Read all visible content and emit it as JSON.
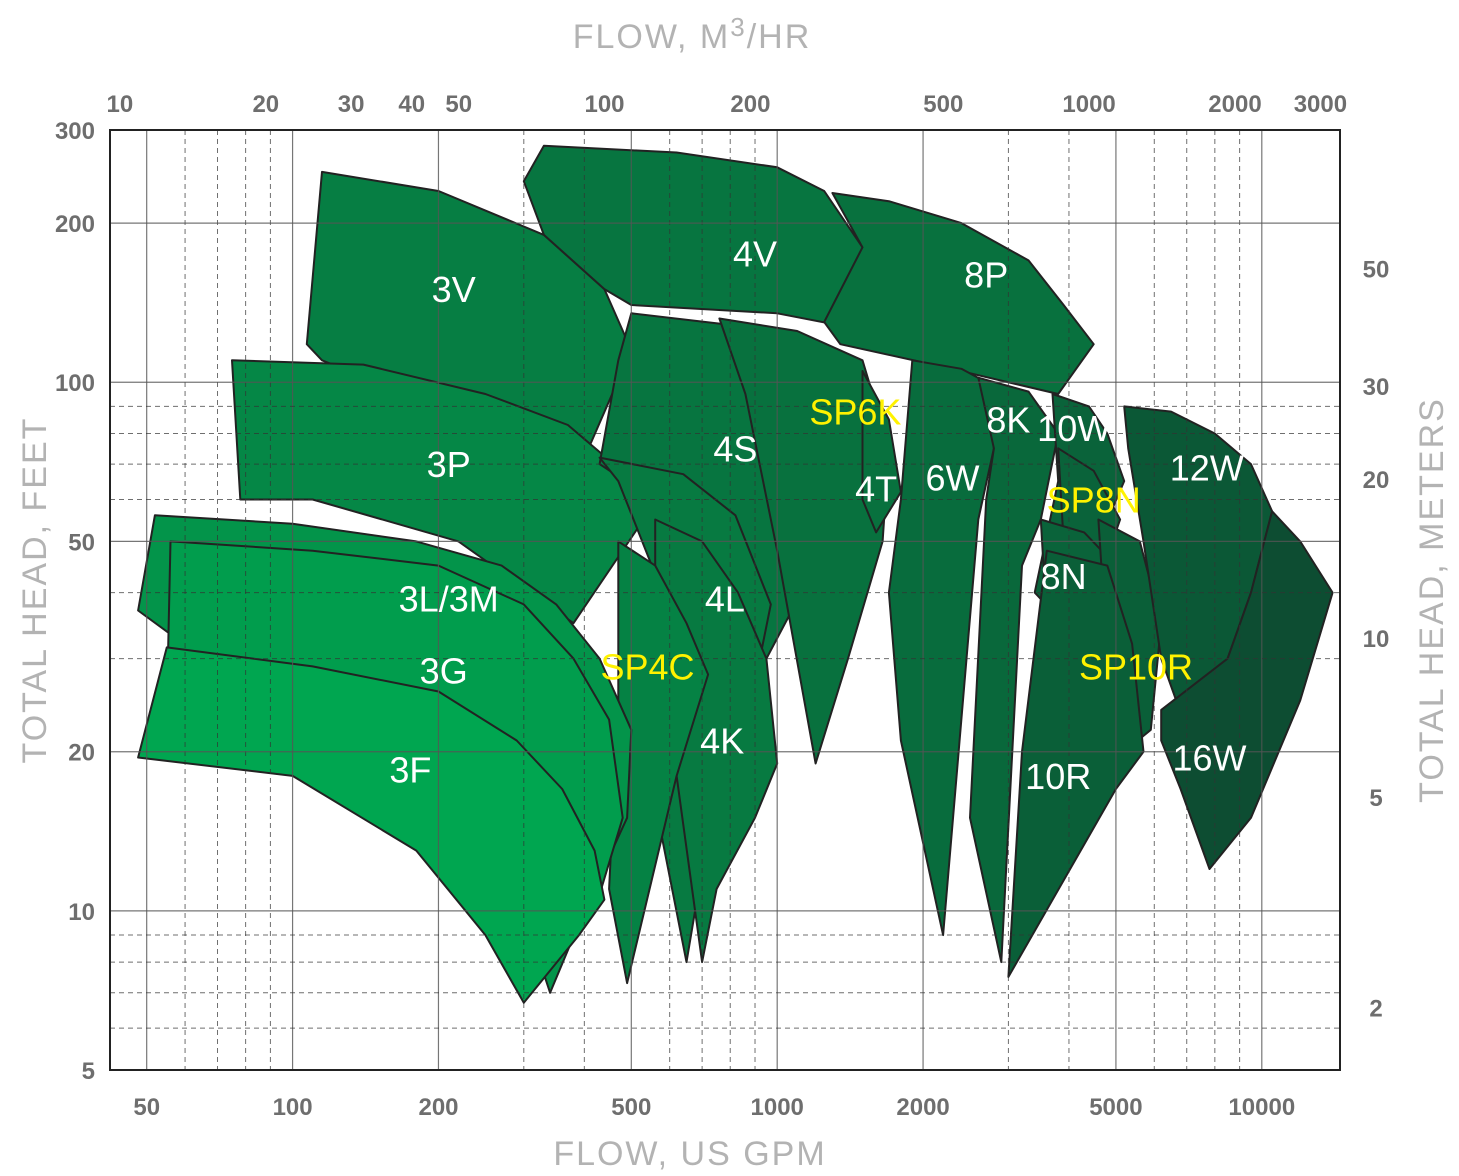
{
  "chart_data": {
    "type": "area",
    "title": "",
    "xlabel": "FLOW, US GPM",
    "x2label_prefix": "FLOW, M",
    "x2label_sup": "3",
    "x2label_suffix": "/HR",
    "ylabel": "TOTAL HEAD, FEET",
    "y2label": "TOTAL HEAD, METERS",
    "x_scale": "log",
    "y_scale": "log",
    "xlim": [
      42,
      14500
    ],
    "ylim": [
      5,
      300
    ],
    "grid": true,
    "colors": {
      "light": "#00a650",
      "dark": "#0d4d32",
      "label_white": "#ffffff",
      "label_yellow": "#fff200",
      "outline": "#222222"
    },
    "x_ticks": [
      "50",
      "100",
      "200",
      "500",
      "1000",
      "2000",
      "5000",
      "10000"
    ],
    "x_tick_values": [
      50,
      100,
      200,
      500,
      1000,
      2000,
      5000,
      10000
    ],
    "y_ticks": [
      "5",
      "10",
      "20",
      "50",
      "100",
      "200",
      "300"
    ],
    "y_tick_values": [
      5,
      10,
      20,
      50,
      100,
      200,
      300
    ],
    "x2_ticks": [
      "10",
      "20",
      "30",
      "40",
      "50",
      "100",
      "200",
      "500",
      "1000",
      "2000",
      "3000"
    ],
    "x2_tick_values": [
      10,
      20,
      30,
      40,
      50,
      100,
      200,
      500,
      1000,
      2000,
      3000
    ],
    "y2_ticks": [
      "2",
      "5",
      "10",
      "20",
      "30",
      "50"
    ],
    "y2_tick_values": [
      2,
      5,
      10,
      20,
      30,
      50
    ],
    "series": [
      {
        "name": "3V",
        "label_color": "white",
        "label_at": [
          215,
          150
        ],
        "shade": 0.45,
        "points": [
          [
            115,
            250
          ],
          [
            200,
            230
          ],
          [
            330,
            190
          ],
          [
            440,
            150
          ],
          [
            500,
            115
          ],
          [
            395,
            70
          ],
          [
            115,
            110
          ],
          [
            107,
            118
          ]
        ]
      },
      {
        "name": "4V",
        "label_color": "white",
        "label_at": [
          900,
          175
        ],
        "shade": 0.55,
        "points": [
          [
            330,
            280
          ],
          [
            620,
            272
          ],
          [
            1000,
            255
          ],
          [
            1250,
            230
          ],
          [
            1500,
            180
          ],
          [
            1350,
            128
          ],
          [
            1000,
            135
          ],
          [
            500,
            140
          ],
          [
            440,
            150
          ],
          [
            330,
            190
          ],
          [
            300,
            240
          ]
        ]
      },
      {
        "name": "8P",
        "label_color": "white",
        "label_at": [
          2700,
          160
        ],
        "shade": 0.6,
        "points": [
          [
            1300,
            228
          ],
          [
            1700,
            220
          ],
          [
            2400,
            200
          ],
          [
            3300,
            170
          ],
          [
            3900,
            140
          ],
          [
            4500,
            118
          ],
          [
            3800,
            95
          ],
          [
            2100,
            108
          ],
          [
            1350,
            118
          ],
          [
            1250,
            130
          ],
          [
            1500,
            180
          ]
        ]
      },
      {
        "name": "3P",
        "label_color": "white",
        "label_at": [
          210,
          70
        ],
        "shade": 0.35,
        "points": [
          [
            75,
            110
          ],
          [
            140,
            108
          ],
          [
            250,
            95
          ],
          [
            370,
            83
          ],
          [
            460,
            70
          ],
          [
            530,
            55
          ],
          [
            380,
            35
          ],
          [
            220,
            50
          ],
          [
            110,
            60
          ],
          [
            78,
            60
          ]
        ]
      },
      {
        "name": "4S",
        "label_color": "white",
        "label_at": [
          820,
          75
        ],
        "shade": 0.55,
        "points": [
          [
            500,
            135
          ],
          [
            820,
            128
          ],
          [
            1200,
            118
          ],
          [
            1450,
            105
          ],
          [
            1600,
            90
          ],
          [
            1500,
            55
          ],
          [
            1200,
            45
          ],
          [
            950,
            30
          ],
          [
            640,
            55
          ],
          [
            430,
            70
          ],
          [
            470,
            110
          ]
        ]
      },
      {
        "name": "SP6K",
        "label_color": "yellow",
        "label_at": [
          1450,
          88
        ],
        "shade": 0.6,
        "points": [
          [
            760,
            132
          ],
          [
            1100,
            125
          ],
          [
            1500,
            110
          ],
          [
            1700,
            75
          ],
          [
            1650,
            50
          ],
          [
            1400,
            30
          ],
          [
            1200,
            19
          ],
          [
            1000,
            48
          ],
          [
            860,
            95
          ]
        ]
      },
      {
        "name": "4T",
        "label_color": "white",
        "label_at": [
          1600,
          63
        ],
        "shade": 0.6,
        "points": [
          [
            1500,
            105
          ],
          [
            1700,
            85
          ],
          [
            1800,
            62
          ],
          [
            1600,
            52
          ],
          [
            1500,
            60
          ]
        ]
      },
      {
        "name": "6W",
        "label_color": "white",
        "label_at": [
          2300,
          66
        ],
        "shade": 0.65,
        "points": [
          [
            1900,
            110
          ],
          [
            2400,
            106
          ],
          [
            2700,
            100
          ],
          [
            2800,
            75
          ],
          [
            2600,
            55
          ],
          [
            2200,
            9
          ],
          [
            1800,
            21
          ],
          [
            1700,
            40
          ],
          [
            1800,
            60
          ]
        ]
      },
      {
        "name": "8K",
        "label_color": "white",
        "label_at": [
          3000,
          85
        ],
        "shade": 0.7,
        "points": [
          [
            2600,
            102
          ],
          [
            3300,
            96
          ],
          [
            3800,
            80
          ],
          [
            3500,
            55
          ],
          [
            3200,
            45
          ],
          [
            2900,
            8
          ],
          [
            2500,
            15
          ],
          [
            2700,
            60
          ],
          [
            2800,
            75
          ]
        ]
      },
      {
        "name": "10W",
        "label_color": "white",
        "label_at": [
          4100,
          82
        ],
        "shade": 0.75,
        "points": [
          [
            3700,
            95
          ],
          [
            4400,
            90
          ],
          [
            4800,
            80
          ],
          [
            5200,
            65
          ],
          [
            4600,
            50
          ],
          [
            3900,
            35
          ],
          [
            3400,
            40
          ],
          [
            3800,
            65
          ]
        ]
      },
      {
        "name": "SP8N",
        "label_color": "yellow",
        "label_at": [
          4500,
          60
        ],
        "shade": 0.75,
        "points": [
          [
            3800,
            75
          ],
          [
            4500,
            68
          ],
          [
            5100,
            55
          ],
          [
            4600,
            42
          ],
          [
            3900,
            50
          ]
        ]
      },
      {
        "name": "8N",
        "label_color": "white",
        "label_at": [
          3900,
          43
        ],
        "shade": 0.75,
        "points": [
          [
            3500,
            55
          ],
          [
            4300,
            52
          ],
          [
            5000,
            45
          ],
          [
            5600,
            30
          ],
          [
            5200,
            20
          ],
          [
            4300,
            25
          ],
          [
            3600,
            35
          ]
        ]
      },
      {
        "name": "SP10R",
        "label_color": "yellow",
        "label_at": [
          5500,
          29
        ],
        "shade": 0.8,
        "points": [
          [
            4600,
            55
          ],
          [
            5600,
            50
          ],
          [
            6200,
            35
          ],
          [
            5900,
            22
          ],
          [
            5200,
            20
          ],
          [
            4800,
            30
          ]
        ]
      },
      {
        "name": "10R",
        "label_color": "white",
        "label_at": [
          3800,
          18
        ],
        "shade": 0.8,
        "points": [
          [
            3600,
            48
          ],
          [
            4800,
            45
          ],
          [
            5400,
            32
          ],
          [
            5700,
            20
          ],
          [
            5000,
            17
          ],
          [
            3000,
            7.5
          ],
          [
            3200,
            20
          ]
        ]
      },
      {
        "name": "12W",
        "label_color": "white",
        "label_at": [
          7700,
          69
        ],
        "shade": 0.88,
        "points": [
          [
            5200,
            90
          ],
          [
            6500,
            88
          ],
          [
            8000,
            80
          ],
          [
            9500,
            70
          ],
          [
            10500,
            57
          ],
          [
            9500,
            40
          ],
          [
            8500,
            30
          ],
          [
            7000,
            22
          ],
          [
            6200,
            30
          ],
          [
            5700,
            50
          ],
          [
            5300,
            75
          ]
        ]
      },
      {
        "name": "16W",
        "label_color": "white",
        "label_at": [
          7800,
          19.5
        ],
        "shade": 1.0,
        "points": [
          [
            10500,
            57
          ],
          [
            12000,
            50
          ],
          [
            14000,
            40
          ],
          [
            12000,
            25
          ],
          [
            9500,
            15
          ],
          [
            7800,
            12
          ],
          [
            6800,
            17
          ],
          [
            6200,
            21
          ],
          [
            6200,
            24
          ],
          [
            8500,
            30
          ],
          [
            9500,
            40
          ]
        ]
      },
      {
        "name": "4L",
        "label_color": "white",
        "label_at": [
          780,
          39
        ],
        "shade": 0.5,
        "points": [
          [
            430,
            72
          ],
          [
            640,
            67
          ],
          [
            820,
            56
          ],
          [
            970,
            38
          ],
          [
            900,
            27
          ],
          [
            800,
            20
          ],
          [
            700,
            12
          ],
          [
            650,
            8
          ],
          [
            560,
            16
          ],
          [
            580,
            40
          ],
          [
            470,
            65
          ]
        ]
      },
      {
        "name": "4K",
        "label_color": "white",
        "label_at": [
          770,
          21
        ],
        "shade": 0.5,
        "points": [
          [
            560,
            55
          ],
          [
            700,
            50
          ],
          [
            830,
            40
          ],
          [
            950,
            30
          ],
          [
            1000,
            19
          ],
          [
            900,
            15
          ],
          [
            750,
            11
          ],
          [
            700,
            8
          ],
          [
            620,
            18
          ],
          [
            560,
            40
          ]
        ]
      },
      {
        "name": "SP4C",
        "label_color": "yellow",
        "label_at": [
          540,
          29
        ],
        "shade": 0.4,
        "points": [
          [
            470,
            50
          ],
          [
            560,
            45
          ],
          [
            650,
            35
          ],
          [
            720,
            28
          ],
          [
            620,
            18
          ],
          [
            490,
            7.3
          ],
          [
            450,
            11
          ],
          [
            470,
            25
          ]
        ]
      },
      {
        "name": "3L/3M",
        "label_color": "white",
        "label_at": [
          210,
          39
        ],
        "shade": 0.2,
        "points": [
          [
            52,
            56
          ],
          [
            100,
            54
          ],
          [
            180,
            50
          ],
          [
            270,
            45
          ],
          [
            350,
            38
          ],
          [
            430,
            30
          ],
          [
            500,
            22
          ],
          [
            490,
            15
          ],
          [
            400,
            10
          ],
          [
            340,
            7
          ],
          [
            280,
            12
          ],
          [
            120,
            20
          ],
          [
            48,
            37
          ]
        ]
      },
      {
        "name": "3G",
        "label_color": "white",
        "label_at": [
          205,
          28.5
        ],
        "shade": 0.1,
        "points": [
          [
            56,
            50
          ],
          [
            110,
            48
          ],
          [
            200,
            45
          ],
          [
            300,
            38
          ],
          [
            380,
            30
          ],
          [
            450,
            23
          ],
          [
            480,
            15
          ],
          [
            420,
            10
          ],
          [
            330,
            7.5
          ],
          [
            280,
            11
          ],
          [
            120,
            17
          ],
          [
            55,
            24
          ]
        ]
      },
      {
        "name": "3F",
        "label_color": "white",
        "label_at": [
          175,
          18.5
        ],
        "shade": 0.0,
        "points": [
          [
            55,
            31.5
          ],
          [
            110,
            29
          ],
          [
            200,
            26
          ],
          [
            290,
            21
          ],
          [
            360,
            17
          ],
          [
            420,
            13
          ],
          [
            440,
            10.5
          ],
          [
            390,
            9
          ],
          [
            300,
            6.7
          ],
          [
            250,
            9
          ],
          [
            180,
            13
          ],
          [
            100,
            18
          ],
          [
            48,
            19.5
          ]
        ]
      }
    ]
  }
}
